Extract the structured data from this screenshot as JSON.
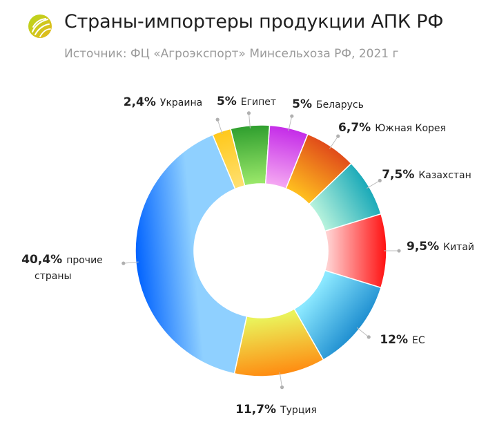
{
  "header": {
    "title": "Страны-импортеры продукции АПК РФ",
    "subtitle": "Источник: ФЦ «Агроэкспорт» Минсельхоза РФ, 2021 г",
    "logo_icon": "leaf-globe-icon"
  },
  "chart_data": {
    "type": "pie",
    "style": "donut",
    "title": "Страны-импортеры продукции АПК РФ",
    "unit": "%",
    "slices": [
      {
        "label": "Египет",
        "value": 5,
        "pct_text": "5%",
        "colors": [
          "#2e9e2e",
          "#9be86a"
        ]
      },
      {
        "label": "Беларусь",
        "value": 5,
        "pct_text": "5%",
        "colors": [
          "#c42be8",
          "#f5a8f2"
        ]
      },
      {
        "label": "Южная Корея",
        "value": 6.7,
        "pct_text": "6,7%",
        "colors": [
          "#e04a1a",
          "#ffbf1f"
        ]
      },
      {
        "label": "Казахстан",
        "value": 7.5,
        "pct_text": "7,5%",
        "colors": [
          "#19a9b8",
          "#b6f2dc"
        ]
      },
      {
        "label": "Китай",
        "value": 9.5,
        "pct_text": "9,5%",
        "colors": [
          "#ff1010",
          "#ffd0d0"
        ]
      },
      {
        "label": "ЕС",
        "value": 12,
        "pct_text": "12%",
        "colors": [
          "#1e8ed0",
          "#8be8ff"
        ]
      },
      {
        "label": "Турция",
        "value": 11.7,
        "pct_text": "11,7%",
        "colors": [
          "#ff8a10",
          "#eaf25a"
        ]
      },
      {
        "label": "прочие страны",
        "label_lines": [
          "прочие",
          "страны"
        ],
        "value": 40.4,
        "pct_text": "40,4%",
        "colors": [
          "#0062ff",
          "#8fd0ff"
        ]
      },
      {
        "label": "Украина",
        "value": 2.4,
        "pct_text": "2,4%",
        "colors": [
          "#ffc81a",
          "#ffe070"
        ]
      }
    ],
    "legend": "labels-around-donut"
  }
}
